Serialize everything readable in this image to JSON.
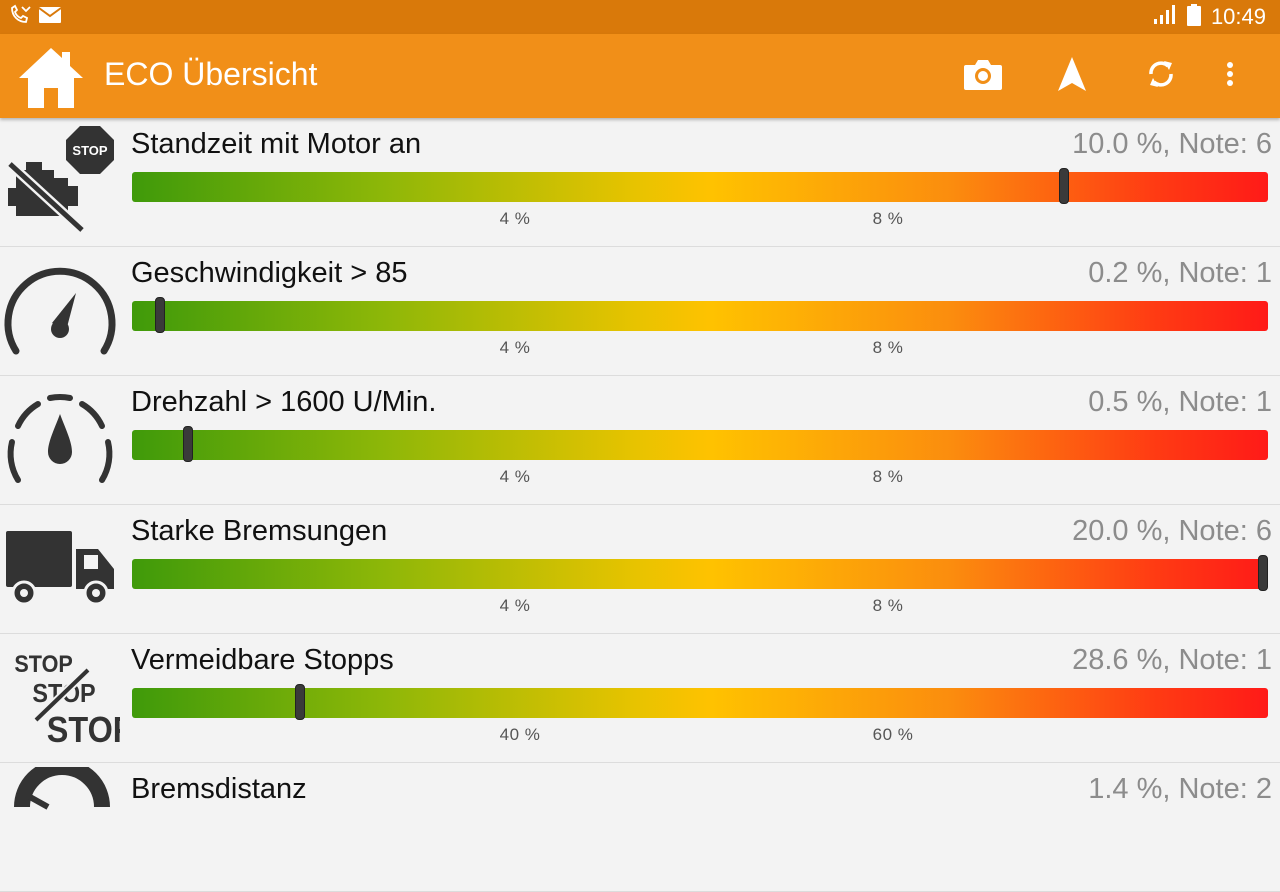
{
  "status_bar": {
    "time": "10:49",
    "notification_icons": [
      "missed-call-icon",
      "mail-icon"
    ],
    "system_icons": [
      "signal-icon",
      "battery-icon"
    ]
  },
  "app_bar": {
    "title": "ECO Übersicht",
    "actions": [
      "camera-icon",
      "navigation-icon",
      "sync-icon",
      "overflow-menu-icon"
    ]
  },
  "colors": {
    "status_bar": "#d9790a",
    "app_bar": "#f18f18",
    "bar_green": "#3f9a0a",
    "bar_yellow": "#ffc200",
    "bar_red": "#ff1a18"
  },
  "items": [
    {
      "label": "Standzeit mit Motor an",
      "value": "10.0 %, Note: 6",
      "icon": "engine-stop-icon",
      "ticks": [
        "4 %",
        "8 %"
      ],
      "marker_fraction": 0.82
    },
    {
      "label": "Geschwindigkeit > 85",
      "value": "0.2 %, Note: 1",
      "icon": "speedometer-icon",
      "ticks": [
        "4 %",
        "8 %"
      ],
      "marker_fraction": 0.025
    },
    {
      "label": "Drehzahl > 1600 U/Min.",
      "value": "0.5 %, Note: 1",
      "icon": "tachometer-icon",
      "ticks": [
        "4 %",
        "8 %"
      ],
      "marker_fraction": 0.049
    },
    {
      "label": "Starke Bremsungen",
      "value": "20.0 %, Note: 6",
      "icon": "truck-icon",
      "ticks": [
        "4 %",
        "8 %"
      ],
      "marker_fraction": 0.996
    },
    {
      "label": "Vermeidbare Stopps",
      "value": "28.6 %, Note: 1",
      "icon": "avoidable-stops-icon",
      "ticks": [
        "40 %",
        "60 %"
      ],
      "marker_fraction": 0.148
    },
    {
      "label": "Bremsdistanz",
      "value": "1.4 %, Note: 2",
      "icon": "brake-distance-icon",
      "ticks": [
        "4 %",
        "8 %"
      ],
      "marker_fraction": null
    }
  ]
}
